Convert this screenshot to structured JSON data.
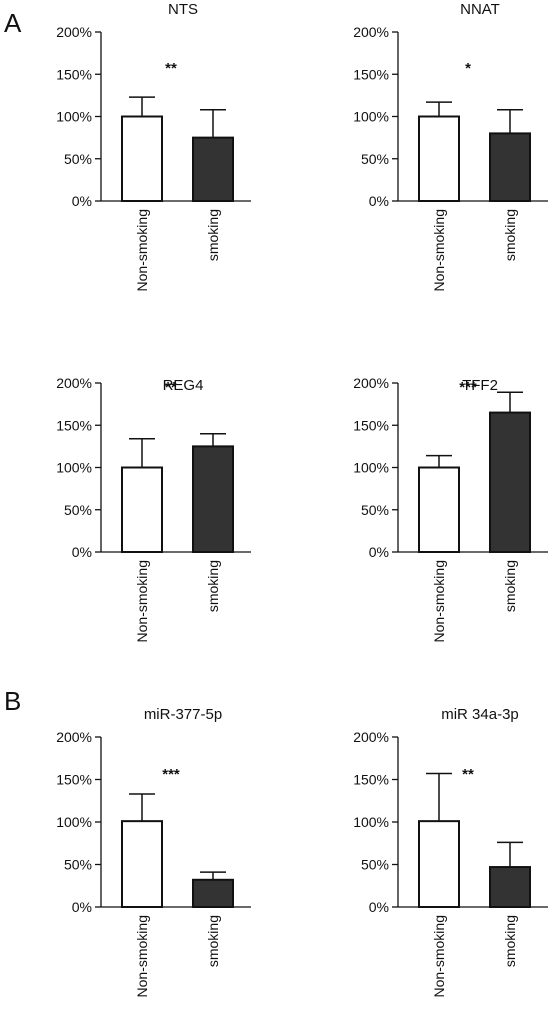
{
  "panels": [
    {
      "label": "A"
    },
    {
      "label": "B"
    }
  ],
  "colors": {
    "non_smoking_fill": "#ffffff",
    "smoking_fill": "#333333",
    "stroke": "#111111"
  },
  "chart_data": [
    {
      "type": "bar",
      "panel": "A",
      "title": "NTS",
      "categories": [
        "Non-smoking",
        "smoking"
      ],
      "values": [
        100,
        75
      ],
      "error_upper": [
        123,
        108
      ],
      "significance": "**",
      "yticks": [
        "0%",
        "50%",
        "100%",
        "150%",
        "200%"
      ],
      "ylim": [
        0,
        200
      ],
      "unit": "%",
      "grid": false
    },
    {
      "type": "bar",
      "panel": "A",
      "title": "NNAT",
      "categories": [
        "Non-smoking",
        "smoking"
      ],
      "values": [
        100,
        80
      ],
      "error_upper": [
        117,
        108
      ],
      "significance": "*",
      "yticks": [
        "0%",
        "50%",
        "100%",
        "150%",
        "200%"
      ],
      "ylim": [
        0,
        200
      ],
      "unit": "%",
      "grid": false
    },
    {
      "type": "bar",
      "panel": "A",
      "title": "REG4",
      "categories": [
        "Non-smoking",
        "smoking"
      ],
      "values": [
        100,
        125
      ],
      "error_upper": [
        134,
        140
      ],
      "significance": "**",
      "yticks": [
        "0%",
        "50%",
        "100%",
        "150%",
        "200%"
      ],
      "ylim": [
        0,
        200
      ],
      "unit": "%",
      "grid": false
    },
    {
      "type": "bar",
      "panel": "A",
      "title": "TFF2",
      "categories": [
        "Non-smoking",
        "smoking"
      ],
      "values": [
        100,
        165
      ],
      "error_upper": [
        114,
        189
      ],
      "significance": "***",
      "yticks": [
        "0%",
        "50%",
        "100%",
        "150%",
        "200%"
      ],
      "ylim": [
        0,
        200
      ],
      "unit": "%",
      "grid": false
    },
    {
      "type": "bar",
      "panel": "B",
      "title": "miR-377-5p",
      "categories": [
        "Non-smoking",
        "smoking"
      ],
      "values": [
        101,
        32
      ],
      "error_upper": [
        133,
        41
      ],
      "significance": "***",
      "yticks": [
        "0%",
        "50%",
        "100%",
        "150%",
        "200%"
      ],
      "ylim": [
        0,
        200
      ],
      "unit": "%",
      "grid": false
    },
    {
      "type": "bar",
      "panel": "B",
      "title": "miR 34a-3p",
      "categories": [
        "Non-smoking",
        "smoking"
      ],
      "values": [
        101,
        47
      ],
      "error_upper": [
        157,
        76
      ],
      "significance": "**",
      "yticks": [
        "0%",
        "50%",
        "100%",
        "150%",
        "200%"
      ],
      "ylim": [
        0,
        200
      ],
      "unit": "%",
      "grid": false
    }
  ]
}
